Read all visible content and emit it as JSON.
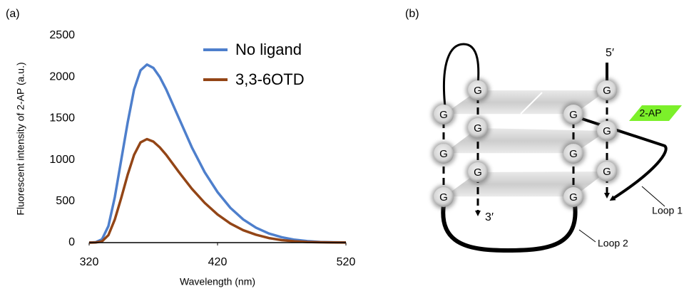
{
  "chart_data": {
    "type": "line",
    "panel_label": "(a)",
    "x_label": "Wavelength (nm)",
    "y_label": "Fluorescent intensity of 2-AP (a.u.)",
    "x": [
      320,
      325,
      330,
      335,
      340,
      345,
      350,
      355,
      360,
      365,
      370,
      375,
      380,
      390,
      400,
      410,
      420,
      430,
      440,
      450,
      460,
      470,
      480,
      490,
      500,
      510,
      520
    ],
    "series": [
      {
        "name": "No ligand",
        "color": "#4e7fcc",
        "values": [
          0,
          5,
          40,
          200,
          550,
          1000,
          1450,
          1850,
          2080,
          2150,
          2110,
          2000,
          1850,
          1500,
          1150,
          850,
          610,
          420,
          280,
          180,
          110,
          65,
          35,
          18,
          8,
          4,
          2
        ]
      },
      {
        "name": "3,3-6OTD",
        "color": "#934516",
        "values": [
          0,
          2,
          15,
          90,
          280,
          540,
          820,
          1060,
          1210,
          1250,
          1220,
          1150,
          1060,
          850,
          650,
          480,
          340,
          230,
          150,
          95,
          55,
          30,
          16,
          8,
          4,
          2,
          1
        ]
      }
    ],
    "xlim": [
      320,
      520
    ],
    "xticks": [
      320,
      420,
      520
    ],
    "ylim": [
      0,
      2500
    ],
    "yticks": [
      0,
      500,
      1000,
      1500,
      2000,
      2500
    ],
    "grid": false,
    "legend": "upper right"
  },
  "diagram": {
    "panel_label": "(b)",
    "five_prime": "5′",
    "three_prime": "3′",
    "probe": "2-AP",
    "loop1": "Loop 1",
    "loop2": "Loop 2",
    "nodes": [
      {
        "label": "G"
      },
      {
        "label": "G"
      },
      {
        "label": "G"
      },
      {
        "label": "G"
      },
      {
        "label": "G"
      },
      {
        "label": "G"
      },
      {
        "label": "G"
      },
      {
        "label": "G"
      },
      {
        "label": "G"
      },
      {
        "label": "G"
      },
      {
        "label": "G"
      },
      {
        "label": "G"
      }
    ]
  }
}
